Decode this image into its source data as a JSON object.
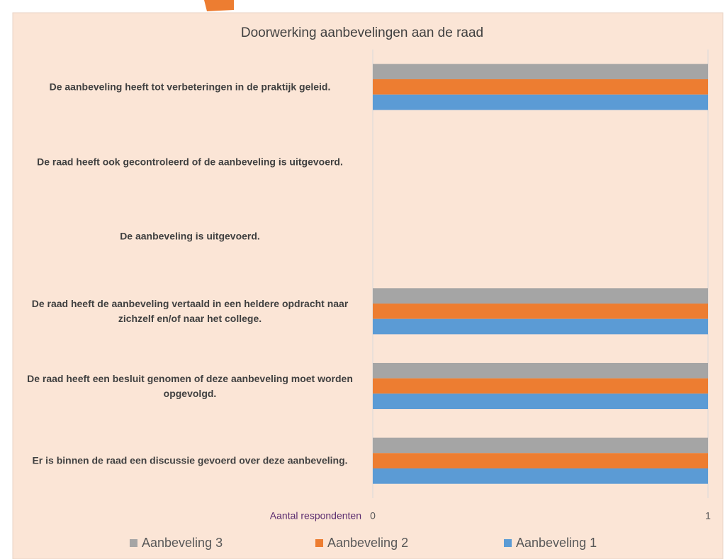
{
  "chart_data": {
    "type": "bar",
    "orientation": "horizontal",
    "title": "Doorwerking aanbevelingen aan de raad",
    "x_label": "Aantal respondenten",
    "categories": [
      "De aanbeveling heeft tot verbeteringen in de praktijk geleid.",
      "De raad heeft ook gecontroleerd of de aanbeveling is uitgevoerd.",
      "De aanbeveling is uitgevoerd.",
      "De raad heeft de aanbeveling vertaald in een heldere opdracht naar zichzelf en/of naar het college.",
      "De raad heeft een besluit genomen of deze aanbeveling moet worden opgevolgd.",
      "Er is binnen de raad een discussie gevoerd over deze aanbeveling."
    ],
    "series": [
      {
        "name": "Aanbeveling 3",
        "color": "#a5a5a5",
        "values": [
          1,
          0,
          0,
          1,
          1,
          1
        ]
      },
      {
        "name": "Aanbeveling 2",
        "color": "#ed7d31",
        "values": [
          1,
          0,
          0,
          1,
          1,
          1
        ]
      },
      {
        "name": "Aanbeveling 1",
        "color": "#5b9bd5",
        "values": [
          1,
          0,
          0,
          1,
          1,
          1
        ]
      }
    ],
    "xlim": [
      0,
      1
    ],
    "xticks": [
      0,
      1
    ],
    "grid": true,
    "legend": "bottom"
  }
}
